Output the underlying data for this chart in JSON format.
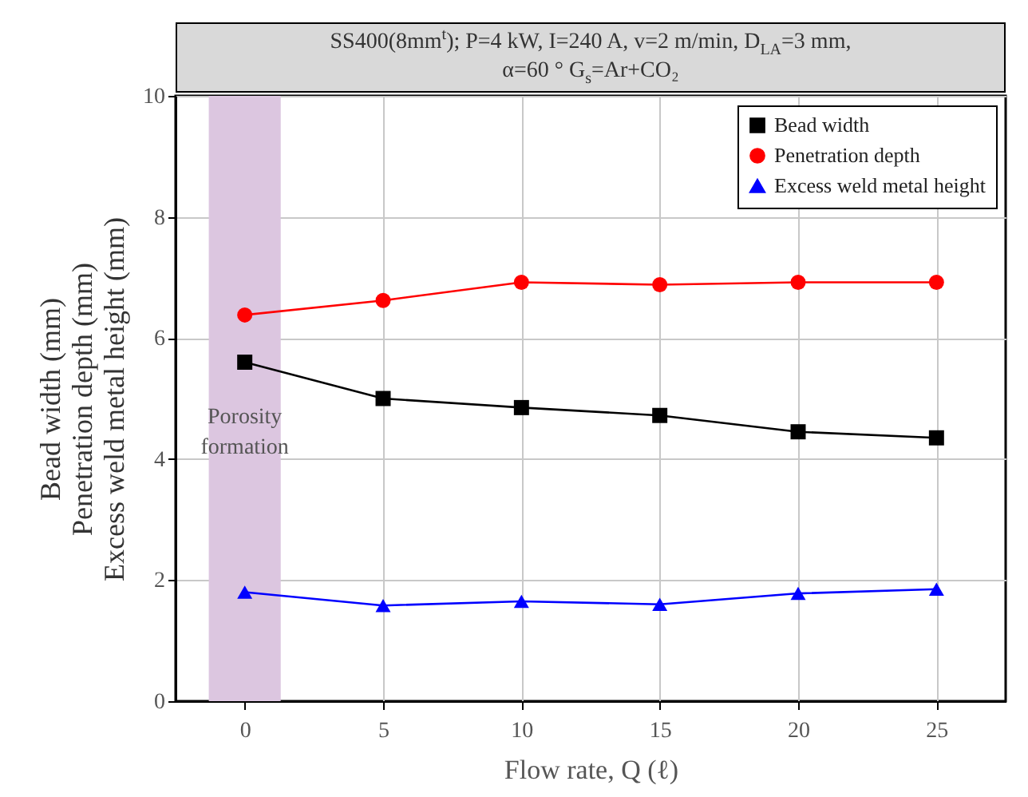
{
  "chart_data": {
    "type": "line",
    "title": "SS400(8mm$^{t}$); P=4 kW, I=240 A, v=2 m/min, D$_{LA}$=3 mm,\nα=60 °  G$_{s}$=Ar+CO₂",
    "xlabel": "Flow rate, Q (ℓ)",
    "ylabel": "Bead width (mm)\nPenetration depth (mm)\nExcess weld metal height (mm)",
    "x": [
      0,
      5,
      10,
      15,
      20,
      25
    ],
    "xlim": [
      -2.5,
      27.5
    ],
    "xticks": [
      0,
      5,
      10,
      15,
      20,
      25
    ],
    "ylim": [
      0,
      10
    ],
    "yticks": [
      0,
      2,
      4,
      6,
      8,
      10
    ],
    "grid": true,
    "legend": "top right",
    "bands": [
      {
        "axis": "x",
        "from": -1.3,
        "to": 1.3,
        "label": "Porosity\nformation",
        "color": "#dcc6e0"
      }
    ],
    "series": [
      {
        "name": "Bead width",
        "color": "#000000",
        "marker": "square",
        "values": [
          5.6,
          5.0,
          4.85,
          4.72,
          4.45,
          4.35
        ]
      },
      {
        "name": "Penetration depth",
        "color": "#ff0000",
        "marker": "circle",
        "values": [
          6.38,
          6.62,
          6.92,
          6.88,
          6.92,
          6.92
        ]
      },
      {
        "name": "Excess weld metal height",
        "color": "#0000ff",
        "marker": "triangle",
        "values": [
          1.8,
          1.58,
          1.65,
          1.6,
          1.78,
          1.85
        ]
      }
    ]
  }
}
